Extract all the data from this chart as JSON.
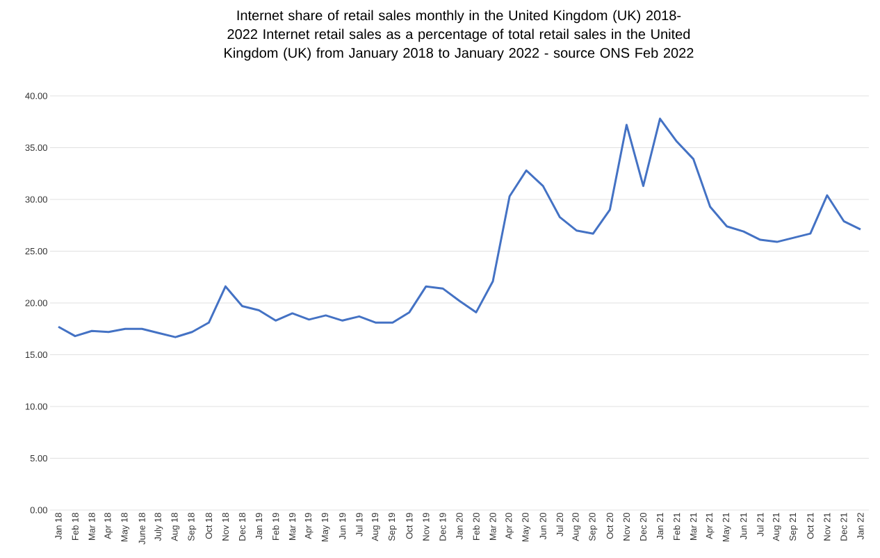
{
  "chart_data": {
    "type": "line",
    "title": "Internet share of retail sales monthly in the United Kingdom (UK) 2018-2022 Internet retail sales as a percentage of total retail sales in the United Kingdom (UK) from January 2018 to January 2022 - source ONS Feb 2022",
    "categories": [
      "Jan 18",
      "Feb 18",
      "Mar 18",
      "Apr 18",
      "May 18",
      "June 18",
      "July 18",
      "Aug 18",
      "Sep 18",
      "Oct 18",
      "Nov 18",
      "Dec 18",
      "Jan 19",
      "Feb 19",
      "Mar 19",
      "Apr 19",
      "May 19",
      "Jun 19",
      "Jul 19",
      "Aug 19",
      "Sep 19",
      "Oct 19",
      "Nov 19",
      "Dec 19",
      "Jan 20",
      "Feb 20",
      "Mar 20",
      "Apr 20",
      "May 20",
      "Jun 20",
      "Jul 20",
      "Aug 20",
      "Sep 20",
      "Oct 20",
      "Nov 20",
      "Dec 20",
      "Jan 21",
      "Feb 21",
      "Mar 21",
      "Apr 21",
      "May 21",
      "Jun 21",
      "Jul 21",
      "Aug 21",
      "Sep 21",
      "Oct 21",
      "Nov 21",
      "Dec 21",
      "Jan 22"
    ],
    "values": [
      17.7,
      16.8,
      17.3,
      17.2,
      17.5,
      17.5,
      17.1,
      16.7,
      17.2,
      18.1,
      21.6,
      19.7,
      19.3,
      18.3,
      19.0,
      18.4,
      18.8,
      18.3,
      18.7,
      18.1,
      18.1,
      19.1,
      21.6,
      21.4,
      20.2,
      19.1,
      22.1,
      30.3,
      32.8,
      31.3,
      28.3,
      27.0,
      26.7,
      29.0,
      37.2,
      31.3,
      37.8,
      35.6,
      33.9,
      29.3,
      27.4,
      26.9,
      26.1,
      25.9,
      26.3,
      26.7,
      30.4,
      27.9,
      27.1
    ],
    "color": "#4472c4",
    "ylim": [
      0,
      40
    ],
    "yticks": [
      {
        "value": 0,
        "label": "0.00"
      },
      {
        "value": 5,
        "label": "5.00"
      },
      {
        "value": 10,
        "label": "10.00"
      },
      {
        "value": 15,
        "label": "15.00"
      },
      {
        "value": 20,
        "label": "20.00"
      },
      {
        "value": 25,
        "label": "25.00"
      },
      {
        "value": 30,
        "label": "30.00"
      },
      {
        "value": 35,
        "label": "35.00"
      },
      {
        "value": 40,
        "label": "40.00"
      }
    ],
    "grid": "y",
    "marker": "none",
    "line_style": "solid"
  }
}
